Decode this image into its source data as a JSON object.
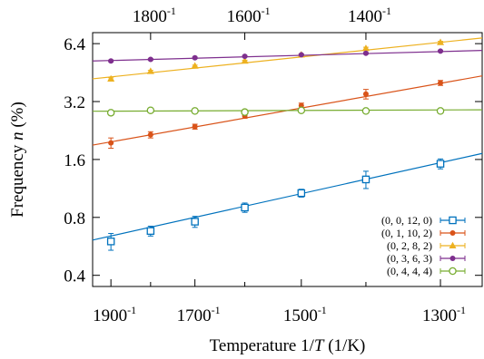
{
  "chart_data": {
    "type": "scatter",
    "title": "",
    "xlabel_prefix": "Temperature 1/",
    "xlabel_var": "T",
    "xlabel_suffix": " (1/K)",
    "ylabel_prefix": "Frequency ",
    "ylabel_var": "n",
    "ylabel_suffix": " (%)",
    "x_scale": "reciprocal",
    "y_scale": "log",
    "xlim": [
      1950,
      1250
    ],
    "ylim": [
      0.35,
      7.3
    ],
    "bottom_ticks": [
      {
        "value": 1900,
        "base": "1900",
        "exp": "-1"
      },
      {
        "value": 1700,
        "base": "1700",
        "exp": "-1"
      },
      {
        "value": 1500,
        "base": "1500",
        "exp": "-1"
      },
      {
        "value": 1300,
        "base": "1300",
        "exp": "-1"
      }
    ],
    "bottom_minor_ticks": [
      1800,
      1600,
      1400
    ],
    "top_ticks": [
      {
        "value": 1800,
        "base": "1800",
        "exp": "-1"
      },
      {
        "value": 1600,
        "base": "1600",
        "exp": "-1"
      },
      {
        "value": 1400,
        "base": "1400",
        "exp": "-1"
      }
    ],
    "y_ticks": [
      {
        "value": 0.4,
        "label": "0.4"
      },
      {
        "value": 0.8,
        "label": "0.8"
      },
      {
        "value": 1.6,
        "label": "1.6"
      },
      {
        "value": 3.2,
        "label": "3.2"
      },
      {
        "value": 6.4,
        "label": "6.4"
      }
    ],
    "grid": false,
    "legend_position": "bottom-right",
    "series": [
      {
        "name": "(0, 0, 12, 0)",
        "color": "#0072bd",
        "marker": "square-open",
        "x": [
          1900,
          1800,
          1700,
          1600,
          1500,
          1400,
          1300
        ],
        "y": [
          0.6,
          0.68,
          0.76,
          0.9,
          1.07,
          1.26,
          1.52
        ],
        "err": [
          0.06,
          0.04,
          0.05,
          0.05,
          0.05,
          0.13,
          0.09
        ],
        "fit": [
          0.61,
          1.72
        ]
      },
      {
        "name": "(0, 1, 10, 2)",
        "color": "#d95319",
        "marker": "circle-filled",
        "x": [
          1900,
          1800,
          1700,
          1600,
          1500,
          1400,
          1300
        ],
        "y": [
          1.95,
          2.15,
          2.37,
          2.69,
          3.05,
          3.5,
          4.0
        ],
        "err": [
          0.12,
          0.08,
          0.07,
          0.07,
          0.09,
          0.2,
          0.12
        ],
        "fit": [
          1.9,
          4.35
        ]
      },
      {
        "name": "(0, 2, 8, 2)",
        "color": "#edb120",
        "marker": "triangle-filled",
        "x": [
          1900,
          1800,
          1700,
          1600,
          1500,
          1400,
          1300
        ],
        "y": [
          4.2,
          4.6,
          4.9,
          5.2,
          5.6,
          6.05,
          6.5
        ],
        "err": [
          0.05,
          0.05,
          0.05,
          0.05,
          0.05,
          0.08,
          0.08
        ],
        "fit": [
          4.2,
          6.85
        ]
      },
      {
        "name": "(0, 3, 6, 3)",
        "color": "#7e2f8e",
        "marker": "circle-filled",
        "x": [
          1900,
          1800,
          1700,
          1600,
          1500,
          1400,
          1300
        ],
        "y": [
          5.2,
          5.3,
          5.4,
          5.5,
          5.6,
          5.7,
          5.85
        ],
        "err": [
          0.05,
          0.05,
          0.05,
          0.05,
          0.05,
          0.05,
          0.05
        ],
        "fit": [
          5.2,
          5.9
        ]
      },
      {
        "name": "(0, 4, 4, 4)",
        "color": "#77ac30",
        "marker": "circle-open",
        "x": [
          1900,
          1800,
          1700,
          1600,
          1500,
          1400,
          1300
        ],
        "y": [
          2.8,
          2.88,
          2.86,
          2.82,
          2.88,
          2.86,
          2.86
        ],
        "err": [
          0.04,
          0.05,
          0.04,
          0.04,
          0.05,
          0.05,
          0.05
        ],
        "fit": [
          2.85,
          2.9
        ]
      }
    ]
  }
}
